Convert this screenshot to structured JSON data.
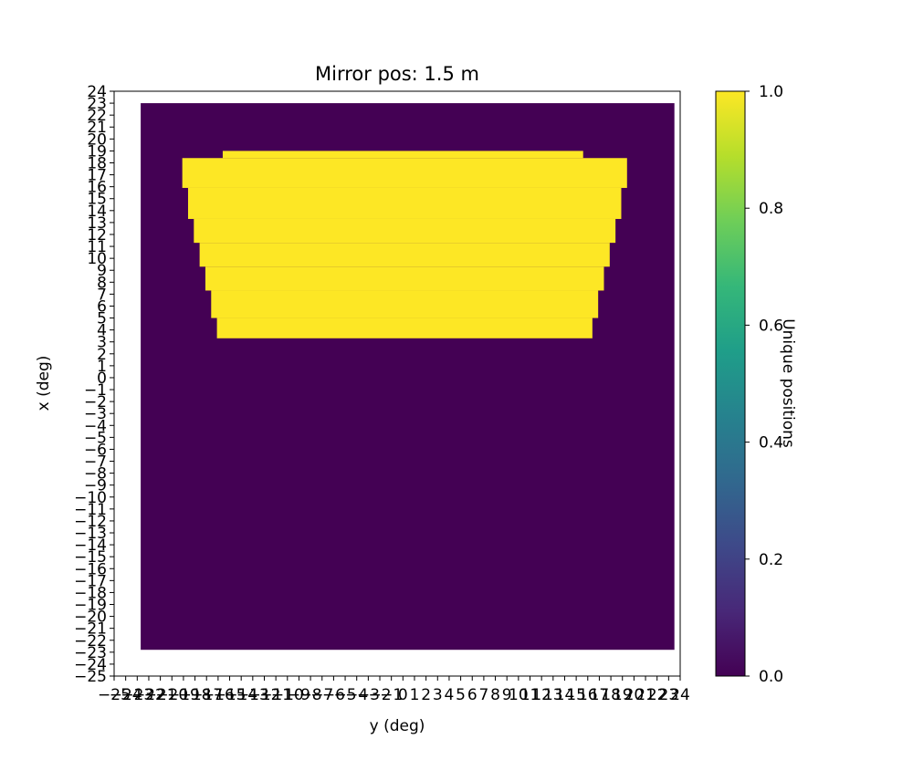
{
  "chart_data": {
    "type": "heatmap",
    "title": "Mirror pos: 1.5 m",
    "xlabel": "y (deg)",
    "ylabel": "x (deg)",
    "xlim": [
      -25,
      24
    ],
    "ylim": [
      -25,
      24
    ],
    "x_ticks": [
      -25,
      -24,
      -23,
      -22,
      -21,
      -20,
      -19,
      -18,
      -17,
      -16,
      -15,
      -14,
      -13,
      -12,
      -11,
      -10,
      -9,
      -8,
      -7,
      -6,
      -5,
      -4,
      -3,
      -2,
      -1,
      0,
      1,
      2,
      3,
      4,
      5,
      6,
      7,
      8,
      9,
      10,
      11,
      12,
      13,
      14,
      15,
      16,
      17,
      18,
      19,
      20,
      21,
      22,
      23,
      24
    ],
    "x_tick_labels": [
      "−25",
      "−24",
      "−23",
      "−22",
      "−21",
      "−20",
      "−19",
      "−18",
      "−17",
      "−16",
      "−15",
      "−14",
      "−13",
      "−12",
      "−11",
      "−10",
      "−9",
      "−8",
      "−7",
      "−6",
      "−5",
      "−4",
      "−3",
      "−2",
      "−1",
      "0",
      "1",
      "2",
      "3",
      "4",
      "5",
      "6",
      "7",
      "8",
      "9",
      "10",
      "11",
      "12",
      "13",
      "14",
      "15",
      "16",
      "17",
      "18",
      "19",
      "20",
      "21",
      "22",
      "23",
      "24"
    ],
    "y_ticks": [
      -25,
      -24,
      -23,
      -22,
      -21,
      -20,
      -19,
      -18,
      -17,
      -16,
      -15,
      -14,
      -13,
      -12,
      -11,
      -10,
      -9,
      -8,
      -7,
      -6,
      -5,
      -4,
      -3,
      -2,
      -1,
      0,
      1,
      2,
      3,
      4,
      5,
      6,
      7,
      8,
      9,
      10,
      11,
      12,
      13,
      14,
      15,
      16,
      17,
      18,
      19,
      20,
      21,
      22,
      23,
      24
    ],
    "y_tick_labels": [
      "−25",
      "−24",
      "−23",
      "−22",
      "−21",
      "−20",
      "−19",
      "−18",
      "−17",
      "−16",
      "−15",
      "−14",
      "−13",
      "−12",
      "−11",
      "−10",
      "−9",
      "−8",
      "−7",
      "−6",
      "−5",
      "−4",
      "−3",
      "−2",
      "−1",
      "0",
      "1",
      "2",
      "3",
      "4",
      "5",
      "6",
      "7",
      "8",
      "9",
      "10",
      "11",
      "12",
      "13",
      "14",
      "15",
      "16",
      "17",
      "18",
      "19",
      "20",
      "21",
      "22",
      "23",
      "24"
    ],
    "image_extent": {
      "x": [
        -22.7,
        23.5
      ],
      "y": [
        -22.8,
        23.0
      ]
    },
    "background_value": 0.0,
    "region_value": 1.0,
    "region_rows": [
      {
        "x_range": [
          18.4,
          19.0
        ],
        "y_range": [
          -15.6,
          15.6
        ]
      },
      {
        "x_range": [
          15.9,
          18.4
        ],
        "y_range": [
          -19.1,
          19.4
        ]
      },
      {
        "x_range": [
          13.3,
          15.9
        ],
        "y_range": [
          -18.6,
          18.9
        ]
      },
      {
        "x_range": [
          11.3,
          13.3
        ],
        "y_range": [
          -18.1,
          18.4
        ]
      },
      {
        "x_range": [
          9.3,
          11.3
        ],
        "y_range": [
          -17.6,
          17.9
        ]
      },
      {
        "x_range": [
          7.3,
          9.3
        ],
        "y_range": [
          -17.1,
          17.4
        ]
      },
      {
        "x_range": [
          5.0,
          7.3
        ],
        "y_range": [
          -16.6,
          16.9
        ]
      },
      {
        "x_range": [
          3.3,
          5.0
        ],
        "y_range": [
          -16.1,
          16.4
        ]
      }
    ],
    "colorbar": {
      "label": "Unique positions",
      "range": [
        0.0,
        1.0
      ],
      "ticks": [
        0.0,
        0.2,
        0.4,
        0.6,
        0.8,
        1.0
      ],
      "tick_labels": [
        "0.0",
        "0.2",
        "0.4",
        "0.6",
        "0.8",
        "1.0"
      ],
      "colormap": "viridis"
    },
    "colors": {
      "low": "#440154",
      "high": "#fde725",
      "viridis_stops": [
        "#440154",
        "#482878",
        "#3e4989",
        "#31688e",
        "#26828e",
        "#1f9e89",
        "#35b779",
        "#6ece58",
        "#b5de2b",
        "#fde725"
      ]
    },
    "grid": false,
    "legend": "none"
  }
}
